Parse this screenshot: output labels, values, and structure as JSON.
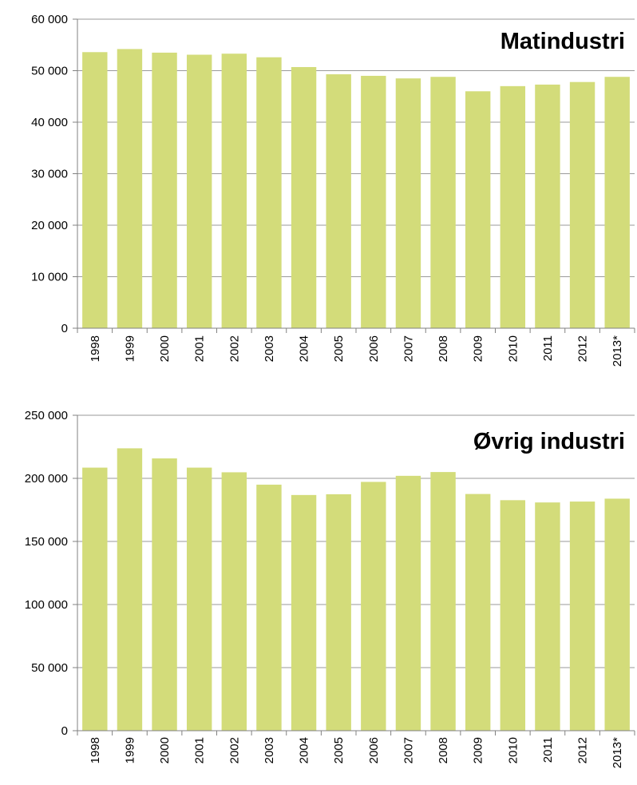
{
  "colors": {
    "bar": "#d3dc7a",
    "grid": "#9a9a9a",
    "axis": "#808080",
    "text": "#000000"
  },
  "chart_data": [
    {
      "type": "bar",
      "title": "Matindustri",
      "categories": [
        "1998",
        "1999",
        "2000",
        "2001",
        "2002",
        "2003",
        "2004",
        "2005",
        "2006",
        "2007",
        "2008",
        "2009",
        "2010",
        "2011",
        "2012",
        "2013*"
      ],
      "values": [
        53600,
        54200,
        53500,
        53100,
        53300,
        52600,
        50700,
        49300,
        49000,
        48500,
        48800,
        46000,
        47000,
        47300,
        47800,
        48800
      ],
      "ylim": [
        0,
        60000
      ],
      "yticks": [
        0,
        10000,
        20000,
        30000,
        40000,
        50000,
        60000
      ],
      "ytick_labels": [
        "0",
        "10 000",
        "20 000",
        "30 000",
        "40 000",
        "50 000",
        "60 000"
      ],
      "grid": true,
      "xlabel": "",
      "ylabel": ""
    },
    {
      "type": "bar",
      "title": "Øvrig industri",
      "categories": [
        "1998",
        "1999",
        "2000",
        "2001",
        "2002",
        "2003",
        "2004",
        "2005",
        "2006",
        "2007",
        "2008",
        "2009",
        "2010",
        "2011",
        "2012",
        "2013*"
      ],
      "values": [
        208500,
        223800,
        215800,
        208500,
        204800,
        195000,
        186800,
        187400,
        197200,
        202000,
        205000,
        187600,
        182700,
        180900,
        181600,
        183900
      ],
      "ylim": [
        0,
        250000
      ],
      "yticks": [
        0,
        50000,
        100000,
        150000,
        200000,
        250000
      ],
      "ytick_labels": [
        "0",
        "50 000",
        "100 000",
        "150 000",
        "200 000",
        "250 000"
      ],
      "grid": true,
      "xlabel": "",
      "ylabel": ""
    }
  ]
}
